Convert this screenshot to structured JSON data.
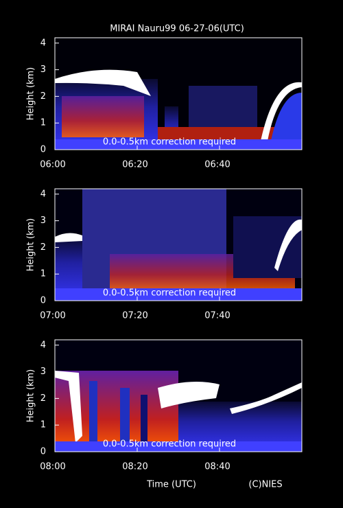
{
  "chart_data": [
    {
      "type": "heatmap",
      "title": "MIRAI Nauru99 06-27-06(UTC)",
      "ylabel": "Height (km)",
      "annotation": "0.0-0.5km correction required",
      "ylim": [
        0,
        4.2
      ],
      "yticks": [
        0,
        1,
        2,
        3,
        4
      ],
      "xlim": [
        360,
        420
      ],
      "xticks": [
        {
          "value": 360,
          "label": "06:00"
        },
        {
          "value": 380,
          "label": "06:20"
        },
        {
          "value": 400,
          "label": "06:40"
        }
      ]
    },
    {
      "type": "heatmap",
      "ylabel": "Height (km)",
      "annotation": "0.0-0.5km correction required",
      "ylim": [
        0,
        4.2
      ],
      "yticks": [
        0,
        1,
        2,
        3,
        4
      ],
      "xlim": [
        420,
        480
      ],
      "xticks": [
        {
          "value": 420,
          "label": "07:00"
        },
        {
          "value": 440,
          "label": "07:20"
        },
        {
          "value": 460,
          "label": "07:40"
        }
      ]
    },
    {
      "type": "heatmap",
      "ylabel": "Height (km)",
      "xlabel": "Time (UTC)",
      "credit": "(C)NIES",
      "annotation": "0.0-0.5km correction required",
      "ylim": [
        0,
        4.2
      ],
      "yticks": [
        0,
        1,
        2,
        3,
        4
      ],
      "xlim": [
        480,
        540
      ],
      "xticks": [
        {
          "value": 480,
          "label": "08:00"
        },
        {
          "value": 500,
          "label": "08:20"
        },
        {
          "value": 520,
          "label": "08:40"
        }
      ]
    }
  ]
}
